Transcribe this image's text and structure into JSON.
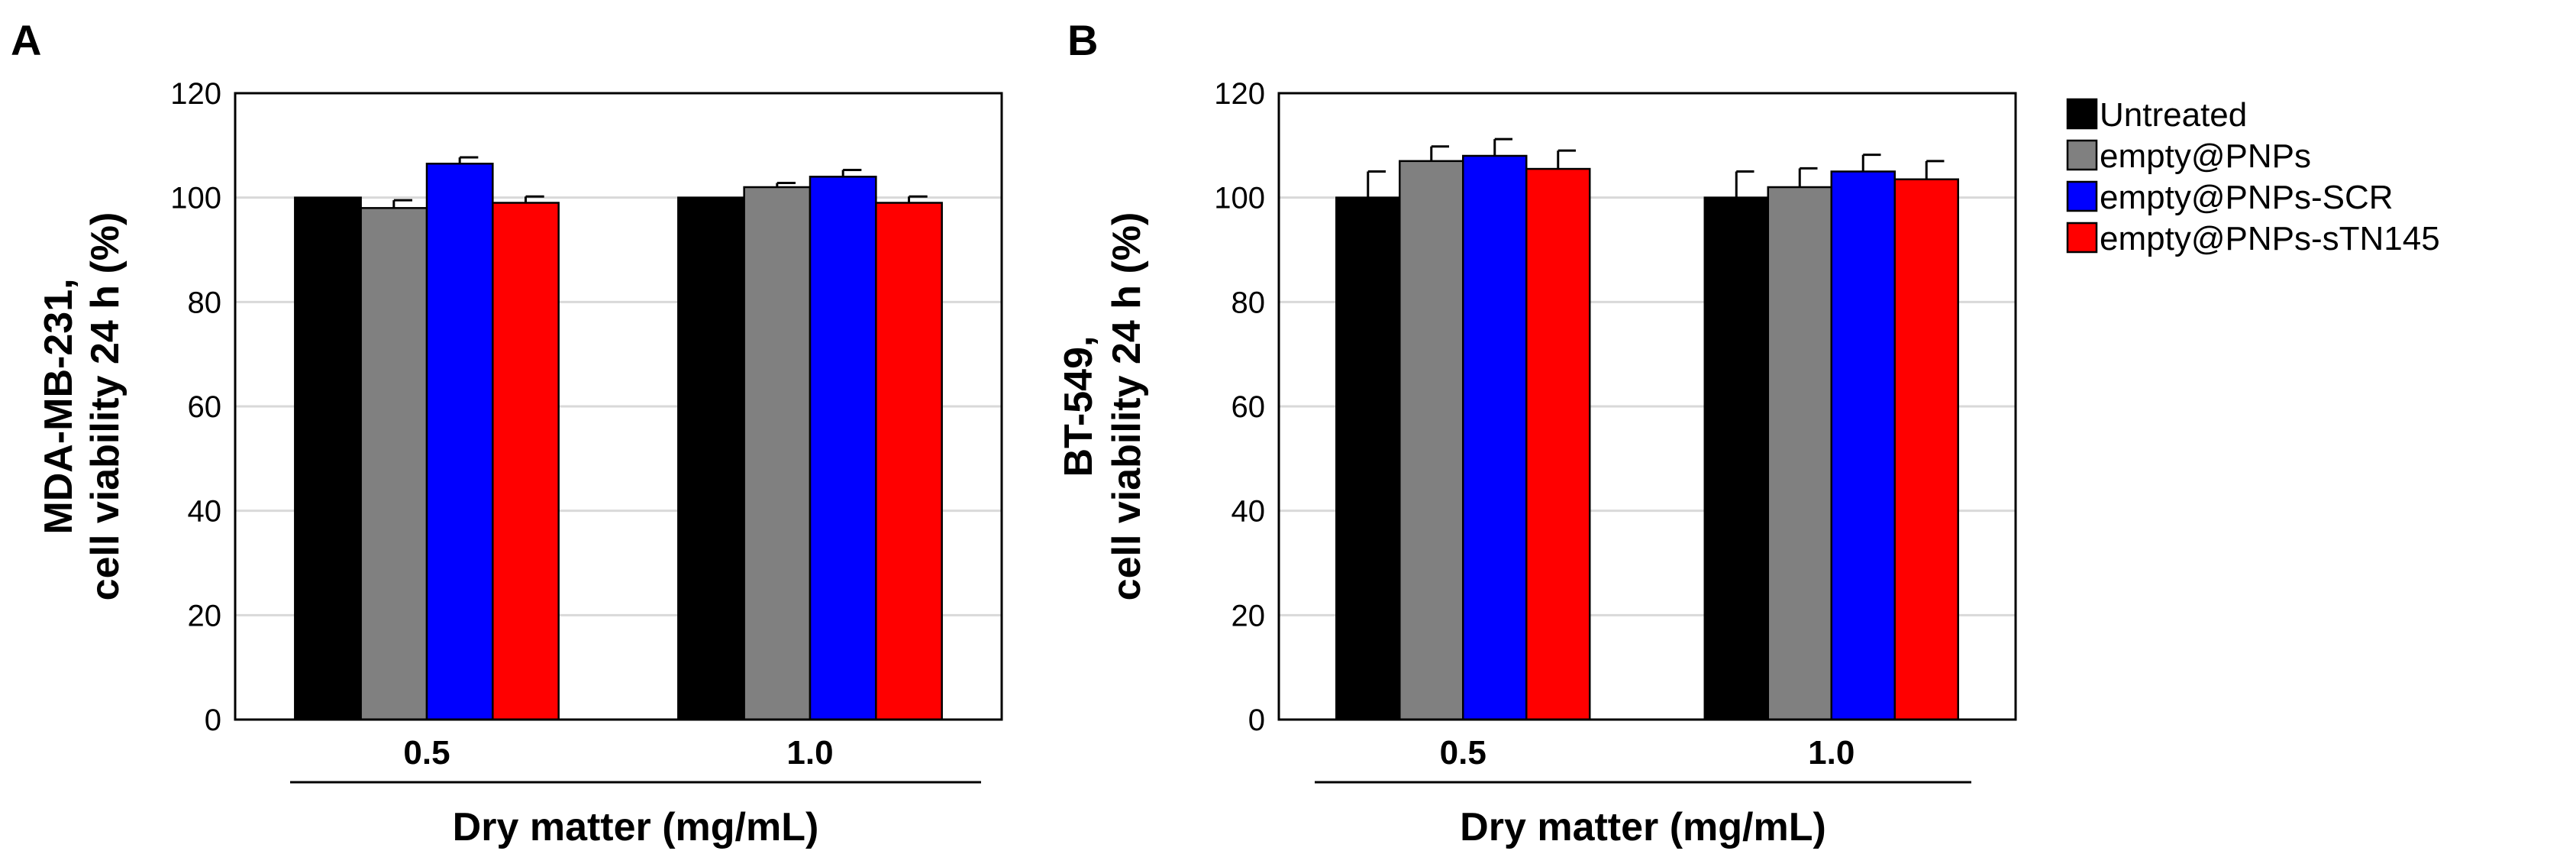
{
  "chart_data": [
    {
      "type": "bar",
      "panel_label": "A",
      "categories": [
        "0.5",
        "1.0"
      ],
      "xlabel": "Dry matter (mg/mL)",
      "ylabel_lines": [
        "MDA-MB-231,",
        "cell viability 24 h (%)"
      ],
      "ylim": [
        0,
        120
      ],
      "yticks": [
        0,
        20,
        40,
        60,
        80,
        100,
        120
      ],
      "grid": true,
      "series": [
        {
          "name": "Untreated",
          "color": "#000000",
          "values": [
            100,
            100
          ],
          "errors": [
            0,
            0
          ]
        },
        {
          "name": "empty@PNPs",
          "color": "#808080",
          "values": [
            98,
            102
          ],
          "errors": [
            1.5,
            0.8
          ]
        },
        {
          "name": "empty@PNPs-SCR",
          "color": "#0000ff",
          "values": [
            106.5,
            104
          ],
          "errors": [
            1.2,
            1.3
          ]
        },
        {
          "name": "empty@PNPs-sTN145",
          "color": "#ff0000",
          "values": [
            99,
            99
          ],
          "errors": [
            1.2,
            1.2
          ]
        }
      ]
    },
    {
      "type": "bar",
      "panel_label": "B",
      "categories": [
        "0.5",
        "1.0"
      ],
      "xlabel": "Dry matter (mg/mL)",
      "ylabel_lines": [
        "BT-549,",
        "cell viability 24 h (%)"
      ],
      "ylim": [
        0,
        120
      ],
      "yticks": [
        0,
        20,
        40,
        60,
        80,
        100,
        120
      ],
      "grid": true,
      "series": [
        {
          "name": "Untreated",
          "color": "#000000",
          "values": [
            100,
            100
          ],
          "errors": [
            5,
            5
          ]
        },
        {
          "name": "empty@PNPs",
          "color": "#808080",
          "values": [
            107,
            102
          ],
          "errors": [
            2.8,
            3.6
          ]
        },
        {
          "name": "empty@PNPs-SCR",
          "color": "#0000ff",
          "values": [
            108,
            105
          ],
          "errors": [
            3.2,
            3.2
          ]
        },
        {
          "name": "empty@PNPs-sTN145",
          "color": "#ff0000",
          "values": [
            105.5,
            103.5
          ],
          "errors": [
            3.5,
            3.5
          ]
        }
      ]
    }
  ],
  "legend": {
    "placement": "top-right",
    "entries": [
      {
        "name": "Untreated",
        "color": "#000000"
      },
      {
        "name": "empty@PNPs",
        "color": "#808080"
      },
      {
        "name": "empty@PNPs-SCR",
        "color": "#0000ff"
      },
      {
        "name": "empty@PNPs-sTN145",
        "color": "#ff0000"
      }
    ]
  }
}
